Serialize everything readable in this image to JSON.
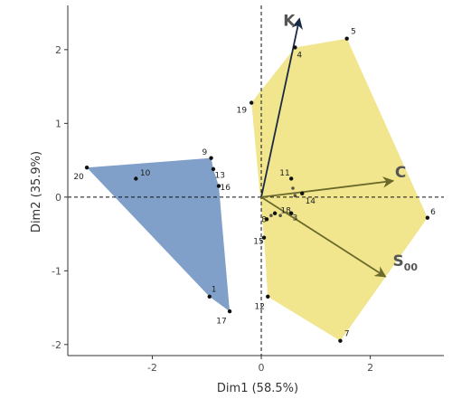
{
  "chart_data": {
    "type": "scatter",
    "title": "",
    "xlabel": "Dim1 (58.5%)",
    "ylabel": "Dim2 (35.9%)",
    "xlim": [
      -3.55,
      3.35
    ],
    "ylim": [
      -2.15,
      2.6
    ],
    "xticks": [
      -2,
      0,
      2
    ],
    "yticks": [
      -2,
      -1,
      0,
      1,
      2
    ],
    "grid": false,
    "groups": [
      {
        "fill": "#6b8fbf",
        "hull": [
          "20",
          "9",
          "13",
          "16",
          "17",
          "1"
        ]
      },
      {
        "fill": "#efe07a",
        "hull": [
          "19",
          "4",
          "5",
          "6",
          "7",
          "12",
          "15"
        ]
      }
    ],
    "points": [
      {
        "label": "1",
        "x": -0.95,
        "y": -1.35,
        "lx": 0.08,
        "ly": 0.1
      },
      {
        "label": "3",
        "x": 0.55,
        "y": -0.22,
        "lx": 0.07,
        "ly": -0.06
      },
      {
        "label": "4",
        "x": 0.62,
        "y": 2.03,
        "lx": 0.08,
        "ly": -0.1
      },
      {
        "label": "5",
        "x": 1.57,
        "y": 2.15,
        "lx": 0.12,
        "ly": 0.1
      },
      {
        "label": "6",
        "x": 3.05,
        "y": -0.28,
        "lx": 0.1,
        "ly": 0.08
      },
      {
        "label": "7",
        "x": 1.45,
        "y": -1.95,
        "lx": 0.12,
        "ly": 0.1
      },
      {
        "label": "8",
        "x": 0.1,
        "y": -0.3,
        "lx": -0.05,
        "ly": 0.0
      },
      {
        "label": "9",
        "x": -0.92,
        "y": 0.53,
        "lx": -0.12,
        "ly": 0.08
      },
      {
        "label": "10",
        "x": -2.3,
        "y": 0.25,
        "lx": 0.17,
        "ly": 0.08
      },
      {
        "label": "11",
        "x": 0.55,
        "y": 0.25,
        "lx": -0.12,
        "ly": 0.08
      },
      {
        "label": "12",
        "x": 0.12,
        "y": -1.35,
        "lx": -0.15,
        "ly": -0.13
      },
      {
        "label": "13",
        "x": -0.88,
        "y": 0.38,
        "lx": 0.12,
        "ly": -0.08
      },
      {
        "label": "14",
        "x": 0.75,
        "y": 0.05,
        "lx": 0.15,
        "ly": -0.1
      },
      {
        "label": "15",
        "x": 0.05,
        "y": -0.55,
        "lx": -0.1,
        "ly": -0.05
      },
      {
        "label": "16",
        "x": -0.78,
        "y": 0.15,
        "lx": 0.12,
        "ly": -0.02
      },
      {
        "label": "17",
        "x": -0.58,
        "y": -1.55,
        "lx": -0.15,
        "ly": -0.13
      },
      {
        "label": "18",
        "x": 0.25,
        "y": -0.22,
        "lx": 0.2,
        "ly": 0.04
      },
      {
        "label": "19",
        "x": -0.18,
        "y": 1.28,
        "lx": -0.18,
        "ly": -0.1
      },
      {
        "label": "20",
        "x": -3.2,
        "y": 0.4,
        "lx": -0.15,
        "ly": -0.12
      }
    ],
    "extra_points": [
      {
        "x": 0.58,
        "y": 0.12
      },
      {
        "x": 0.62,
        "y": 0.02
      },
      {
        "x": 0.35,
        "y": -0.25
      },
      {
        "x": 0.18,
        "y": -0.25
      }
    ],
    "vectors": [
      {
        "label": "K",
        "sub": "",
        "x": 0.7,
        "y": 2.42
      },
      {
        "label": "C",
        "sub": "",
        "x": 2.42,
        "y": 0.22
      },
      {
        "label": "S",
        "sub": "00",
        "x": 2.28,
        "y": -1.08
      }
    ],
    "vector_color": "#6b6a2a"
  }
}
